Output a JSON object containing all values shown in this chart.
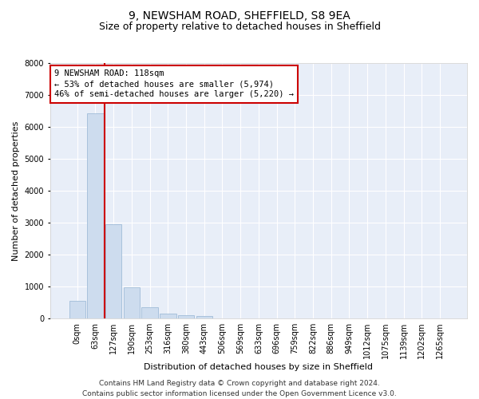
{
  "title": "9, NEWSHAM ROAD, SHEFFIELD, S8 9EA",
  "subtitle": "Size of property relative to detached houses in Sheffield",
  "xlabel": "Distribution of detached houses by size in Sheffield",
  "ylabel": "Number of detached properties",
  "bar_color": "#cddcee",
  "bar_edge_color": "#a0bcd8",
  "background_color": "#e8eef8",
  "grid_color": "#ffffff",
  "vline_color": "#cc0000",
  "vline_x": 1.5,
  "annotation_text": "9 NEWSHAM ROAD: 118sqm\n← 53% of detached houses are smaller (5,974)\n46% of semi-detached houses are larger (5,220) →",
  "annotation_box_color": "#cc0000",
  "categories": [
    "0sqm",
    "63sqm",
    "127sqm",
    "190sqm",
    "253sqm",
    "316sqm",
    "380sqm",
    "443sqm",
    "506sqm",
    "569sqm",
    "633sqm",
    "696sqm",
    "759sqm",
    "822sqm",
    "886sqm",
    "949sqm",
    "1012sqm",
    "1075sqm",
    "1139sqm",
    "1202sqm",
    "1265sqm"
  ],
  "values": [
    540,
    6430,
    2940,
    970,
    340,
    160,
    110,
    80,
    0,
    0,
    0,
    0,
    0,
    0,
    0,
    0,
    0,
    0,
    0,
    0,
    0
  ],
  "ylim": [
    0,
    8000
  ],
  "yticks": [
    0,
    1000,
    2000,
    3000,
    4000,
    5000,
    6000,
    7000,
    8000
  ],
  "footnote": "Contains HM Land Registry data © Crown copyright and database right 2024.\nContains public sector information licensed under the Open Government Licence v3.0.",
  "title_fontsize": 10,
  "subtitle_fontsize": 9,
  "axis_label_fontsize": 8,
  "tick_fontsize": 7,
  "annotation_fontsize": 7.5,
  "footnote_fontsize": 6.5
}
